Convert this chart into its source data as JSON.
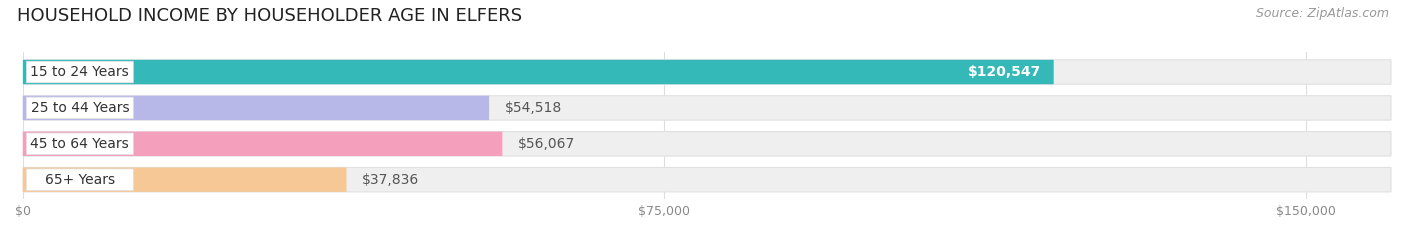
{
  "title": "HOUSEHOLD INCOME BY HOUSEHOLDER AGE IN ELFERS",
  "source": "Source: ZipAtlas.com",
  "categories": [
    "15 to 24 Years",
    "25 to 44 Years",
    "45 to 64 Years",
    "65+ Years"
  ],
  "values": [
    120547,
    54518,
    56067,
    37836
  ],
  "bar_colors": [
    "#35b8b8",
    "#b8b8e8",
    "#f4a0bc",
    "#f5c896"
  ],
  "track_color": "#efefef",
  "track_border": "#e0e0e0",
  "value_labels": [
    "$120,547",
    "$54,518",
    "$56,067",
    "$37,836"
  ],
  "value_label_inside": [
    true,
    false,
    false,
    false
  ],
  "value_label_colors_inside": "#ffffff",
  "value_label_colors_outside": "#555555",
  "x_ticks": [
    0,
    75000,
    150000
  ],
  "x_tick_labels": [
    "$0",
    "$75,000",
    "$150,000"
  ],
  "xlim_max": 160000,
  "background_color": "#ffffff",
  "title_fontsize": 13,
  "source_fontsize": 9,
  "label_fontsize": 10,
  "value_fontsize": 10,
  "pill_color": "#ffffff",
  "pill_border": "#e0e0e0",
  "label_text_color": "#333333",
  "grid_color": "#dddddd",
  "tick_label_color": "#888888"
}
